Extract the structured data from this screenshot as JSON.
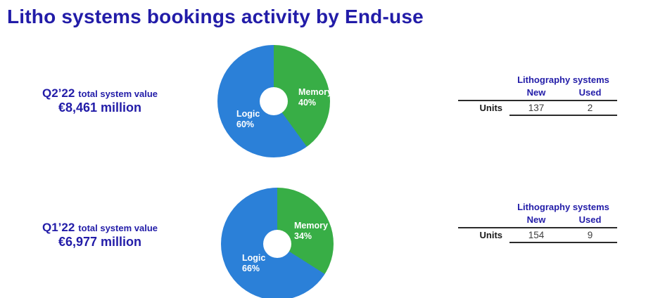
{
  "page": {
    "title": "Litho systems bookings activity by End-use"
  },
  "colors": {
    "heading_blue": "#221ca8",
    "pie_logic_blue": "#2b80d8",
    "pie_memory_green": "#38ae46",
    "table_rule": "#2b2b2b",
    "number_text": "#3f3f3f"
  },
  "rows": [
    {
      "period": "Q2’22",
      "period_suffix": "total system value",
      "value": "€8,461 million",
      "donut": {
        "memory_label": "Memory",
        "memory_pct": "40%",
        "logic_label": "Logic",
        "logic_pct": "60%"
      },
      "table": {
        "title": "Lithography systems",
        "col_new": "New",
        "col_used": "Used",
        "row_label": "Units",
        "new_units": "137",
        "used_units": "2"
      }
    },
    {
      "period": "Q1’22",
      "period_suffix": "total system value",
      "value": "€6,977 million",
      "donut": {
        "memory_label": "Memory",
        "memory_pct": "34%",
        "logic_label": "Logic",
        "logic_pct": "66%"
      },
      "table": {
        "title": "Lithography systems",
        "col_new": "New",
        "col_used": "Used",
        "row_label": "Units",
        "new_units": "154",
        "used_units": "9"
      }
    }
  ],
  "chart_data": [
    {
      "type": "pie",
      "title": "Q2’22 total system value €8,461 million",
      "donut": true,
      "start_angle_deg": 0,
      "direction": "clockwise",
      "slices": [
        {
          "label": "Memory",
          "value": 40,
          "color": "#38ae46"
        },
        {
          "label": "Logic",
          "value": 60,
          "color": "#2b80d8"
        }
      ],
      "unit": "%"
    },
    {
      "type": "pie",
      "title": "Q1’22 total system value €6,977 million",
      "donut": true,
      "start_angle_deg": 0,
      "direction": "clockwise",
      "slices": [
        {
          "label": "Memory",
          "value": 34,
          "color": "#38ae46"
        },
        {
          "label": "Logic",
          "value": 66,
          "color": "#2b80d8"
        }
      ],
      "unit": "%"
    },
    {
      "type": "table",
      "title": "Lithography systems",
      "columns": [
        "New",
        "Used"
      ],
      "rows": [
        {
          "label": "Units",
          "values": [
            137,
            2
          ]
        }
      ]
    },
    {
      "type": "table",
      "title": "Lithography systems",
      "columns": [
        "New",
        "Used"
      ],
      "rows": [
        {
          "label": "Units",
          "values": [
            154,
            9
          ]
        }
      ]
    }
  ]
}
